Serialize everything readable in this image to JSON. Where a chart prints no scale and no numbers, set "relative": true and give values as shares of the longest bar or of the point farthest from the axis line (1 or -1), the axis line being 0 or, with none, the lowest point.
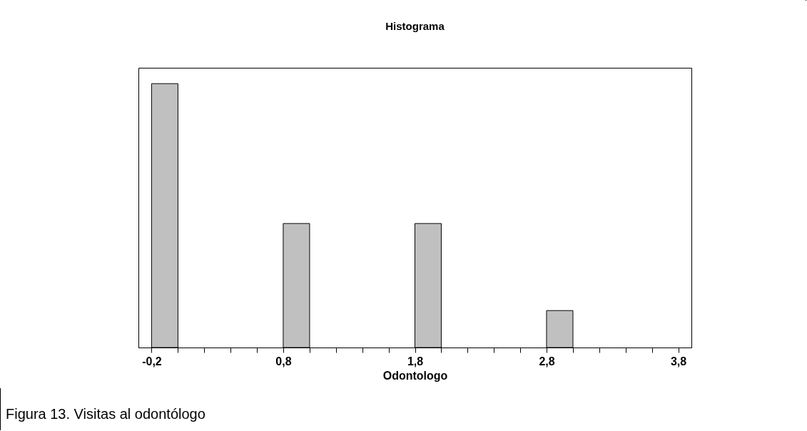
{
  "chart_data": {
    "type": "bar",
    "title": "Histograma",
    "xlabel": "Odontologo",
    "relative": true,
    "x": [
      -0.1,
      0.9,
      1.9,
      2.9
    ],
    "values": [
      1,
      0.47,
      0.47,
      0.14
    ],
    "color": "#c0c0c0",
    "xlim": [
      -0.3,
      3.9
    ],
    "xticks": [
      {
        "value": -0.2,
        "label": "-0,2"
      },
      {
        "value": 0,
        "label": null
      },
      {
        "value": 0.2,
        "label": null
      },
      {
        "value": 0.4,
        "label": null
      },
      {
        "value": 0.6,
        "label": null
      },
      {
        "value": 0.8,
        "label": "0,8"
      },
      {
        "value": 1,
        "label": null
      },
      {
        "value": 1.2,
        "label": null
      },
      {
        "value": 1.4,
        "label": null
      },
      {
        "value": 1.6,
        "label": null
      },
      {
        "value": 1.8,
        "label": "1,8"
      },
      {
        "value": 2,
        "label": null
      },
      {
        "value": 2.2,
        "label": null
      },
      {
        "value": 2.4,
        "label": null
      },
      {
        "value": 2.6,
        "label": null
      },
      {
        "value": 2.8,
        "label": "2,8"
      },
      {
        "value": 3,
        "label": null
      },
      {
        "value": 3.2,
        "label": null
      },
      {
        "value": 3.4,
        "label": null
      },
      {
        "value": 3.6,
        "label": null
      },
      {
        "value": 3.8,
        "label": "3,8"
      }
    ],
    "annotations": [
      "Figura 13.  Visitas al odontólogo"
    ]
  }
}
